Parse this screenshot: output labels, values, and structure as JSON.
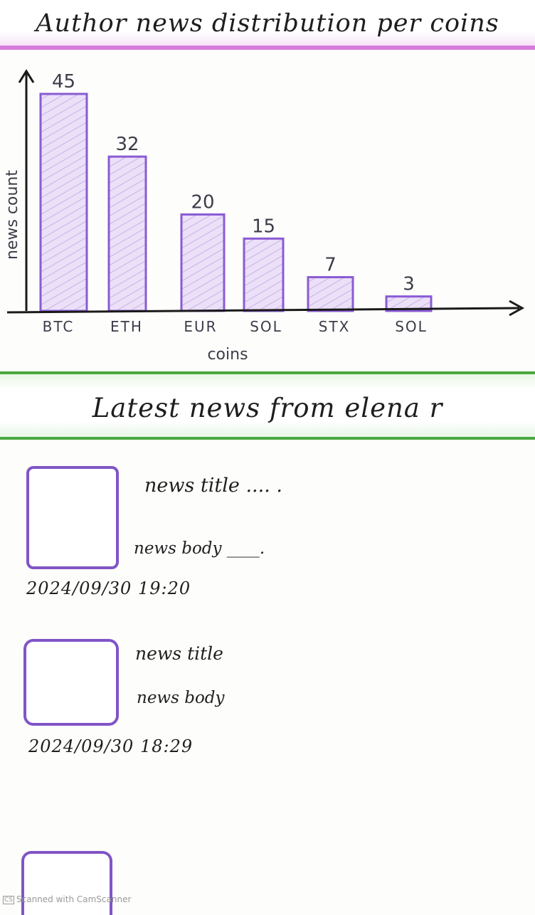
{
  "header": {
    "title": "Author news distribution per coins"
  },
  "chart_data": {
    "type": "bar",
    "categories": [
      "BTC",
      "ETH",
      "EUR",
      "SOL",
      "STX",
      "SOL"
    ],
    "values": [
      45,
      32,
      20,
      15,
      7,
      3
    ],
    "title": "Author news distribution per coins",
    "xlabel": "coins",
    "ylabel": "news count",
    "grid": false,
    "legend": "none",
    "bar_color": "#8a5bd4",
    "bar_fill": "#e8dcf6"
  },
  "news_section": {
    "title": "Latest news from elena r",
    "items": [
      {
        "title": "news title .... .",
        "body": "news body ____.",
        "timestamp": "2024/09/30  19:20"
      },
      {
        "title": "news title",
        "body": "news body",
        "timestamp": "2024/09/30    18:29"
      },
      {
        "title": "",
        "body": "",
        "timestamp": ""
      }
    ]
  },
  "colors": {
    "chart_band_border": "#d77cdc",
    "news_band_border": "#49a83f",
    "thumbnail_border": "#8055c6"
  },
  "footer": {
    "scanner_icon": "CS",
    "scanner_text": "Scanned with CamScanner"
  }
}
